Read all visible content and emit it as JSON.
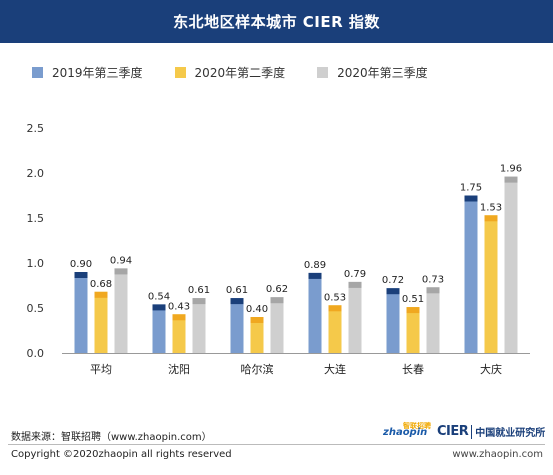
{
  "header": {
    "title": "东北地区样本城市 CIER 指数"
  },
  "colors": {
    "series": [
      {
        "body": "#7a9cce",
        "cap": "#1a3f7a"
      },
      {
        "body": "#f5c94a",
        "cap": "#f0a820"
      },
      {
        "body": "#cfcfcf",
        "cap": "#a6a6a6"
      }
    ]
  },
  "chart_data": {
    "type": "bar",
    "title": "东北地区样本城市 CIER 指数",
    "xlabel": "",
    "ylabel": "",
    "categories": [
      "平均",
      "沈阳",
      "哈尔滨",
      "大连",
      "长春",
      "大庆"
    ],
    "series": [
      {
        "name": "2019年第三季度",
        "values": [
          0.9,
          0.54,
          0.61,
          0.89,
          0.72,
          1.75
        ]
      },
      {
        "name": "2020年第二季度",
        "values": [
          0.68,
          0.43,
          0.4,
          0.53,
          0.51,
          1.53
        ]
      },
      {
        "name": "2020年第三季度",
        "values": [
          0.94,
          0.61,
          0.62,
          0.79,
          0.73,
          1.96
        ]
      }
    ],
    "value_labels": [
      [
        "0.90",
        "0.54",
        "0.61",
        "0.89",
        "0.72",
        "1.75"
      ],
      [
        "0.68",
        "0.43",
        "0.40",
        "0.53",
        "0.51",
        "1.53"
      ],
      [
        "0.94",
        "0.61",
        "0.62",
        "0.79",
        "0.73",
        "1.96"
      ]
    ],
    "ylim": [
      0,
      2.5
    ],
    "yticks": [
      "0.0",
      "0.5",
      "1.0",
      "1.5",
      "2.0",
      "2.5"
    ],
    "grid": false,
    "legend": "top-left"
  },
  "footer": {
    "source": "数据来源：智联招聘（www.zhaopin.com）",
    "copyright": "Copyright ©2020zhaopin all rights reserved",
    "site": "www.zhaopin.com",
    "logo_zhaopin": "zhaopin",
    "logo_zhaopin_cn": "智联招聘",
    "logo_cier": "CIER",
    "logo_cier_cn": "中国就业研究所"
  }
}
